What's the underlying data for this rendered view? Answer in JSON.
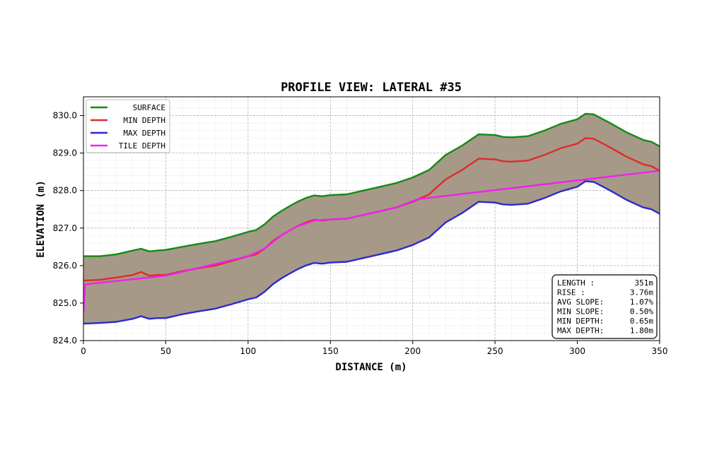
{
  "chart_data": {
    "type": "line",
    "title": "PROFILE VIEW: LATERAL #35",
    "xlabel": "DISTANCE (m)",
    "ylabel": "ELEVATION (m)",
    "xlim": [
      0,
      350
    ],
    "ylim": [
      824.0,
      830.5
    ],
    "xticks": [
      0,
      50,
      100,
      150,
      200,
      250,
      300,
      350
    ],
    "yticks": [
      824.0,
      825.0,
      826.0,
      827.0,
      828.0,
      829.0,
      830.0
    ],
    "ytick_labels": [
      "824.0",
      "825.0",
      "826.0",
      "827.0",
      "828.0",
      "829.0",
      "830.0"
    ],
    "grid": true,
    "legend_position": "top-left",
    "shaded_band_color": "#a69987",
    "series": [
      {
        "name": "SURFACE",
        "color": "#158a15",
        "points": [
          [
            0,
            826.25
          ],
          [
            10,
            826.25
          ],
          [
            20,
            826.3
          ],
          [
            30,
            826.4
          ],
          [
            35,
            826.45
          ],
          [
            40,
            826.38
          ],
          [
            45,
            826.4
          ],
          [
            50,
            826.42
          ],
          [
            60,
            826.5
          ],
          [
            70,
            826.58
          ],
          [
            80,
            826.65
          ],
          [
            90,
            826.77
          ],
          [
            100,
            826.9
          ],
          [
            105,
            826.95
          ],
          [
            110,
            827.1
          ],
          [
            115,
            827.3
          ],
          [
            120,
            827.45
          ],
          [
            125,
            827.58
          ],
          [
            130,
            827.7
          ],
          [
            135,
            827.8
          ],
          [
            140,
            827.87
          ],
          [
            145,
            827.85
          ],
          [
            150,
            827.88
          ],
          [
            160,
            827.9
          ],
          [
            170,
            828.0
          ],
          [
            180,
            828.1
          ],
          [
            190,
            828.2
          ],
          [
            200,
            828.35
          ],
          [
            210,
            828.55
          ],
          [
            215,
            828.75
          ],
          [
            220,
            828.95
          ],
          [
            230,
            829.2
          ],
          [
            240,
            829.5
          ],
          [
            250,
            829.48
          ],
          [
            255,
            829.43
          ],
          [
            260,
            829.42
          ],
          [
            270,
            829.45
          ],
          [
            280,
            829.6
          ],
          [
            290,
            829.78
          ],
          [
            300,
            829.9
          ],
          [
            305,
            830.05
          ],
          [
            310,
            830.03
          ],
          [
            320,
            829.8
          ],
          [
            330,
            829.55
          ],
          [
            340,
            829.35
          ],
          [
            345,
            829.3
          ],
          [
            350,
            829.18
          ]
        ]
      },
      {
        "name": "MIN DEPTH",
        "color": "#e02b2b",
        "points": [
          [
            0,
            825.6
          ],
          [
            10,
            825.62
          ],
          [
            20,
            825.68
          ],
          [
            30,
            825.75
          ],
          [
            35,
            825.83
          ],
          [
            40,
            825.73
          ],
          [
            45,
            825.75
          ],
          [
            50,
            825.75
          ],
          [
            60,
            825.85
          ],
          [
            70,
            825.93
          ],
          [
            80,
            826.0
          ],
          [
            90,
            826.12
          ],
          [
            100,
            826.25
          ],
          [
            105,
            826.3
          ],
          [
            110,
            826.45
          ],
          [
            115,
            826.65
          ],
          [
            120,
            826.8
          ],
          [
            125,
            826.93
          ],
          [
            130,
            827.05
          ],
          [
            135,
            827.15
          ],
          [
            140,
            827.22
          ],
          [
            145,
            827.2
          ],
          [
            150,
            827.23
          ],
          [
            160,
            827.25
          ],
          [
            170,
            827.35
          ],
          [
            180,
            827.45
          ],
          [
            190,
            827.55
          ],
          [
            200,
            827.7
          ],
          [
            210,
            827.9
          ],
          [
            215,
            828.1
          ],
          [
            220,
            828.3
          ],
          [
            230,
            828.55
          ],
          [
            240,
            828.85
          ],
          [
            250,
            828.83
          ],
          [
            255,
            828.78
          ],
          [
            260,
            828.77
          ],
          [
            270,
            828.8
          ],
          [
            280,
            828.95
          ],
          [
            290,
            829.13
          ],
          [
            300,
            829.25
          ],
          [
            305,
            829.4
          ],
          [
            310,
            829.38
          ],
          [
            320,
            829.15
          ],
          [
            330,
            828.9
          ],
          [
            340,
            828.7
          ],
          [
            345,
            828.65
          ],
          [
            350,
            828.53
          ]
        ]
      },
      {
        "name": "MAX DEPTH",
        "color": "#2b2bc8",
        "points": [
          [
            0,
            824.45
          ],
          [
            10,
            824.47
          ],
          [
            20,
            824.5
          ],
          [
            30,
            824.58
          ],
          [
            35,
            824.65
          ],
          [
            40,
            824.58
          ],
          [
            45,
            824.6
          ],
          [
            50,
            824.6
          ],
          [
            60,
            824.7
          ],
          [
            70,
            824.78
          ],
          [
            80,
            824.85
          ],
          [
            90,
            824.97
          ],
          [
            100,
            825.1
          ],
          [
            105,
            825.15
          ],
          [
            110,
            825.3
          ],
          [
            115,
            825.5
          ],
          [
            120,
            825.65
          ],
          [
            125,
            825.78
          ],
          [
            130,
            825.9
          ],
          [
            135,
            826.0
          ],
          [
            140,
            826.07
          ],
          [
            145,
            826.05
          ],
          [
            150,
            826.08
          ],
          [
            160,
            826.1
          ],
          [
            170,
            826.2
          ],
          [
            180,
            826.3
          ],
          [
            190,
            826.4
          ],
          [
            200,
            826.55
          ],
          [
            210,
            826.75
          ],
          [
            215,
            826.95
          ],
          [
            220,
            827.15
          ],
          [
            230,
            827.4
          ],
          [
            240,
            827.7
          ],
          [
            250,
            827.68
          ],
          [
            255,
            827.63
          ],
          [
            260,
            827.62
          ],
          [
            270,
            827.65
          ],
          [
            280,
            827.8
          ],
          [
            290,
            827.98
          ],
          [
            300,
            828.1
          ],
          [
            305,
            828.25
          ],
          [
            310,
            828.23
          ],
          [
            320,
            828.0
          ],
          [
            330,
            827.75
          ],
          [
            340,
            827.55
          ],
          [
            345,
            827.5
          ],
          [
            350,
            827.38
          ]
        ]
      },
      {
        "name": "TILE DEPTH",
        "color": "#f020f0",
        "points": [
          [
            0,
            824.75
          ],
          [
            1,
            825.5
          ],
          [
            50,
            825.73
          ],
          [
            100,
            826.25
          ],
          [
            110,
            826.45
          ],
          [
            120,
            826.8
          ],
          [
            130,
            827.05
          ],
          [
            140,
            827.2
          ],
          [
            150,
            827.23
          ],
          [
            160,
            827.25
          ],
          [
            170,
            827.35
          ],
          [
            180,
            827.45
          ],
          [
            190,
            827.55
          ],
          [
            203,
            827.77
          ],
          [
            350,
            828.53
          ]
        ]
      }
    ]
  },
  "stats_box": {
    "rows": [
      {
        "label": "LENGTH    :",
        "value": "351m"
      },
      {
        "label": "RISE      :",
        "value": "3.76m"
      },
      {
        "label": "AVG SLOPE:",
        "value": "1.07%"
      },
      {
        "label": "MIN SLOPE:",
        "value": "0.50%"
      },
      {
        "label": "MIN DEPTH:",
        "value": "0.65m"
      },
      {
        "label": "MAX DEPTH:",
        "value": "1.80m"
      }
    ]
  }
}
